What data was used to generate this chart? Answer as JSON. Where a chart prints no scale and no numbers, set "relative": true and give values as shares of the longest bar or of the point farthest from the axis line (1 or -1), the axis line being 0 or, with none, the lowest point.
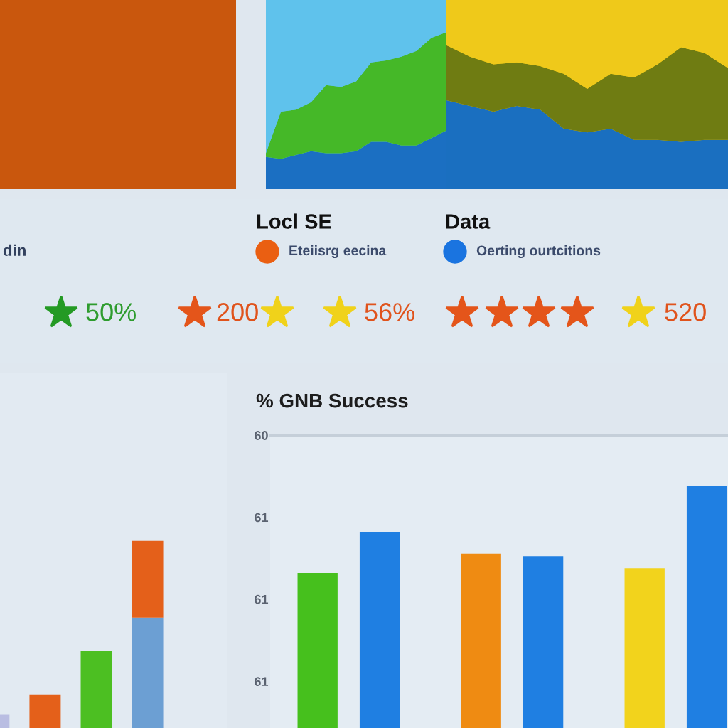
{
  "chart_data": [
    {
      "type": "area",
      "stacked": true,
      "relative": true,
      "categories": [
        null,
        null,
        null,
        null,
        null,
        null,
        null,
        null,
        null,
        null,
        null,
        null,
        null
      ],
      "series": [
        {
          "color": "#1b6fc2",
          "values": [
            0.17,
            0.16,
            0.18,
            0.2,
            0.19,
            0.19,
            0.2,
            0.25,
            0.25,
            0.23,
            0.23,
            0.27,
            0.31
          ]
        },
        {
          "color": "#45b828",
          "values": [
            0.02,
            0.25,
            0.24,
            0.26,
            0.36,
            0.35,
            0.37,
            0.42,
            0.43,
            0.47,
            0.5,
            0.53,
            0.52
          ]
        },
        {
          "color": "#5fc2ec",
          "values": [
            0.81,
            0.59,
            0.58,
            0.54,
            0.45,
            0.46,
            0.43,
            0.33,
            0.32,
            0.3,
            0.27,
            0.2,
            0.17
          ]
        }
      ]
    },
    {
      "type": "area",
      "stacked": true,
      "relative": true,
      "categories": [
        null,
        null,
        null,
        null,
        null,
        null,
        null,
        null,
        null,
        null,
        null,
        null,
        null
      ],
      "series": [
        {
          "color": "#1a6fc0",
          "values": [
            0.47,
            0.44,
            0.41,
            0.44,
            0.42,
            0.32,
            0.3,
            0.32,
            0.26,
            0.26,
            0.25,
            0.26,
            0.26
          ]
        },
        {
          "color": "#6f7c12",
          "values": [
            0.29,
            0.26,
            0.25,
            0.23,
            0.23,
            0.29,
            0.23,
            0.29,
            0.33,
            0.4,
            0.5,
            0.46,
            0.38
          ]
        },
        {
          "color": "#efc91a",
          "values": [
            0.24,
            0.3,
            0.34,
            0.33,
            0.35,
            0.39,
            0.47,
            0.39,
            0.41,
            0.34,
            0.25,
            0.28,
            0.36
          ]
        }
      ]
    },
    {
      "type": "other",
      "annotations": [
        "din",
        "Locl SE",
        "Data",
        "50%",
        "200",
        "56%",
        "520"
      ],
      "series": [
        {
          "name": "Eteiisrg eecina",
          "color": "#ea5f12"
        },
        {
          "name": "Oerting ourtcitions",
          "color": "#1a74e0"
        }
      ]
    },
    {
      "type": "bar",
      "stacked": true,
      "relative": true,
      "categories": [
        null,
        null,
        null,
        null
      ],
      "series": [
        {
          "colors": [
            "#b9bde2",
            "#e4601a",
            "#4cbf22",
            "#6c9fd3"
          ],
          "values": [
            0.07,
            0.18,
            0.41,
            0.59
          ]
        },
        {
          "color": "#e4601a",
          "values": [
            null,
            null,
            null,
            0.41
          ]
        }
      ]
    },
    {
      "type": "bar",
      "relative": true,
      "title": "% GNB Success",
      "categories": [
        null,
        null,
        null
      ],
      "series": [
        {
          "colors": [
            "#46c01d",
            "#ef8b12",
            "#f2d31c"
          ],
          "values": [
            0.64,
            0.72,
            0.66
          ]
        },
        {
          "color": "#1f7fe2",
          "values": [
            0.81,
            0.71,
            1.0
          ]
        }
      ],
      "annotations": [
        "60",
        "61",
        "61",
        "61"
      ]
    }
  ]
}
